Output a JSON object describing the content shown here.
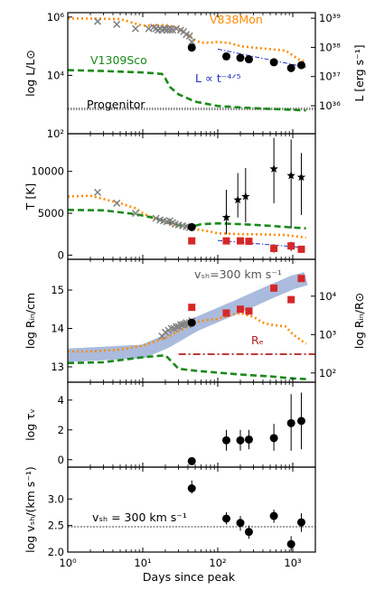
{
  "xaxis": {
    "label": "Days since peak",
    "log": true,
    "lim": [
      1,
      2000
    ],
    "ticks": [
      {
        "v": 1,
        "label": "10⁰"
      },
      {
        "v": 10,
        "label": "10¹"
      },
      {
        "v": 100,
        "label": "10²"
      },
      {
        "v": 1000,
        "label": "10³"
      }
    ]
  },
  "colors": {
    "v838": "#ff8c00",
    "v1309": "#1a8a1a",
    "grey": "#808080",
    "black": "#000000",
    "red": "#d62728",
    "band": "#aabbdd",
    "rc": "#b22222",
    "fit": "#1f2fbf"
  },
  "chart_data": [
    {
      "type": "scatter",
      "panel": "luminosity",
      "ylabel": "log L/L⊙",
      "y2label": "L [erg s⁻¹]",
      "ylim": [
        2,
        6.15
      ],
      "yticks": [
        {
          "v": 2,
          "label": "10²"
        },
        {
          "v": 4,
          "label": "10⁴"
        },
        {
          "v": 6,
          "label": "10⁶"
        }
      ],
      "y2ticks": [
        {
          "v": 2.96,
          "label": "10³⁶"
        },
        {
          "v": 3.96,
          "label": "10³⁷"
        },
        {
          "v": 4.96,
          "label": "10³⁸"
        },
        {
          "v": 5.96,
          "label": "10³⁹"
        }
      ],
      "annotations": {
        "v838": "V838Mon",
        "v1309": "V1309Sco",
        "progenitor": "Progenitor",
        "powerlaw": "L ∝ t⁻⁴ᐟ⁵"
      },
      "progenitor_level": 2.85,
      "v838_line": {
        "x": [
          1,
          2,
          5,
          10,
          16,
          20,
          25,
          30,
          35,
          40,
          50,
          60,
          80,
          100,
          150,
          200,
          300,
          500,
          800,
          1200,
          1500
        ],
        "y": [
          5.95,
          5.95,
          5.93,
          5.7,
          5.72,
          5.73,
          5.68,
          5.6,
          5.5,
          5.4,
          5.2,
          5.12,
          5.12,
          5.15,
          5.1,
          5.0,
          4.95,
          4.9,
          4.85,
          4.55,
          4.45
        ]
      },
      "v1309_line": {
        "x": [
          1,
          3,
          10,
          18,
          20,
          23,
          30,
          50,
          100,
          200,
          500,
          1000,
          1500
        ],
        "y": [
          4.18,
          4.15,
          4.1,
          4.05,
          3.9,
          3.6,
          3.35,
          3.1,
          2.95,
          2.9,
          2.85,
          2.82,
          2.8
        ]
      },
      "grey_x": {
        "x": [
          2.5,
          4.5,
          8,
          12,
          14,
          15,
          16,
          17,
          18,
          19,
          20,
          21,
          22,
          23,
          24,
          25,
          28,
          32,
          35,
          38,
          42,
          45
        ],
        "y": [
          5.85,
          5.75,
          5.6,
          5.6,
          5.65,
          5.6,
          5.55,
          5.6,
          5.55,
          5.6,
          5.6,
          5.55,
          5.6,
          5.55,
          5.6,
          5.55,
          5.6,
          5.55,
          5.5,
          5.4,
          5.35,
          5.15
        ]
      },
      "black_points": {
        "x": [
          45,
          130,
          200,
          260,
          560,
          950,
          1300
        ],
        "y": [
          4.95,
          4.65,
          4.6,
          4.55,
          4.45,
          4.25,
          4.35
        ]
      },
      "fit_line": {
        "x": [
          100,
          1500
        ],
        "y": [
          4.9,
          4.28
        ]
      }
    },
    {
      "type": "scatter",
      "panel": "temperature",
      "ylabel": "T [K]",
      "ylim": [
        -500,
        14500
      ],
      "yticks": [
        {
          "v": 0,
          "label": "0"
        },
        {
          "v": 5000,
          "label": "5000"
        },
        {
          "v": 10000,
          "label": "10000"
        }
      ],
      "v838_line": {
        "x": [
          1,
          2,
          3,
          5,
          8,
          10,
          15,
          20,
          30,
          40,
          60,
          80,
          100,
          150,
          200,
          300,
          500,
          800,
          1200,
          1500
        ],
        "y": [
          7000,
          7100,
          6700,
          6200,
          5600,
          5000,
          4300,
          3900,
          3500,
          3200,
          3000,
          2800,
          2600,
          2550,
          2500,
          2500,
          2450,
          2400,
          2200,
          2100
        ]
      },
      "v1309_line": {
        "x": [
          1,
          3,
          8,
          15,
          20,
          30,
          45,
          60,
          100,
          200,
          500,
          1000,
          1500
        ],
        "y": [
          5400,
          5350,
          4900,
          4400,
          4000,
          3600,
          3400,
          3700,
          3800,
          3700,
          3500,
          3300,
          3200
        ]
      },
      "grey_x": {
        "x": [
          2.5,
          4.5,
          8,
          15,
          17,
          19,
          21,
          23,
          25,
          27,
          30,
          34,
          38,
          42
        ],
        "y": [
          7500,
          6200,
          5000,
          4400,
          4200,
          4100,
          4000,
          4100,
          3900,
          3700,
          3600,
          3500,
          3400,
          3300
        ]
      },
      "black_points": {
        "x": [
          45
        ],
        "y": [
          3350
        ]
      },
      "black_stars": {
        "x": [
          130,
          185,
          235,
          560,
          950,
          1300
        ],
        "y": [
          4500,
          6600,
          7000,
          10300,
          9500,
          9300
        ]
      },
      "star_err": [
        [
          130,
          2500,
          7800
        ],
        [
          185,
          4500,
          9800
        ],
        [
          235,
          3900,
          10400
        ],
        [
          560,
          6200,
          14000
        ],
        [
          950,
          3200,
          13800
        ],
        [
          1300,
          4800,
          12200
        ]
      ],
      "red_squares": {
        "x": [
          45,
          130,
          200,
          260,
          560,
          950,
          1300
        ],
        "y": [
          1700,
          1700,
          1700,
          1650,
          800,
          1100,
          700
        ]
      },
      "red_err": [
        [
          560,
          300,
          1300
        ],
        [
          950,
          500,
          1600
        ]
      ],
      "fit_line": {
        "x": [
          100,
          1400
        ],
        "y": [
          1750,
          900
        ]
      }
    },
    {
      "type": "scatter",
      "panel": "radius",
      "ylabel": "log Rᵢₙ/cm",
      "y2label": "log Rᵢₙ/R⊙",
      "ylim": [
        12.6,
        15.8
      ],
      "yticks": [
        {
          "v": 13,
          "label": "13"
        },
        {
          "v": 14,
          "label": "14"
        },
        {
          "v": 15,
          "label": "15"
        }
      ],
      "y2ticks": [
        {
          "v": 12.84,
          "label": "10²"
        },
        {
          "v": 13.84,
          "label": "10³"
        },
        {
          "v": 14.84,
          "label": "10⁴"
        }
      ],
      "annotations": {
        "band": "vₛₕ=300 km s⁻¹",
        "rc": "Rₑ"
      },
      "rc_level": 13.33,
      "band_line": {
        "x": [
          1,
          10,
          20,
          50,
          100,
          200,
          500,
          1000,
          1500
        ],
        "y": [
          13.3,
          13.4,
          13.65,
          14.1,
          14.35,
          14.6,
          14.95,
          15.2,
          15.3
        ]
      },
      "v838_line": {
        "x": [
          1,
          2,
          5,
          10,
          20,
          40,
          60,
          100,
          150,
          200,
          300,
          400,
          500,
          800,
          1000,
          1500
        ],
        "y": [
          13.4,
          13.4,
          13.45,
          13.55,
          13.75,
          14.05,
          14.2,
          14.25,
          14.35,
          14.4,
          14.3,
          14.15,
          14.1,
          14.05,
          13.85,
          13.6
        ]
      },
      "v1309_line": {
        "x": [
          1,
          3,
          10,
          20,
          22,
          30,
          50,
          100,
          200,
          500,
          1000,
          1500
        ],
        "y": [
          13.1,
          13.12,
          13.25,
          13.3,
          13.22,
          12.95,
          12.9,
          12.85,
          12.8,
          12.75,
          12.7,
          12.68
        ]
      },
      "grey_x": {
        "x": [
          18,
          20,
          22,
          24,
          26,
          28,
          30,
          32,
          34,
          36,
          38,
          40,
          42,
          45
        ],
        "y": [
          13.8,
          13.9,
          13.95,
          14.0,
          14.0,
          14.05,
          14.05,
          14.1,
          14.1,
          14.12,
          14.15,
          14.1,
          14.15,
          14.2
        ]
      },
      "black_points": {
        "x": [
          45
        ],
        "y": [
          14.15
        ]
      },
      "red_squares": {
        "x": [
          45,
          130,
          200,
          260,
          560,
          950,
          1300
        ],
        "y": [
          14.55,
          14.4,
          14.5,
          14.45,
          15.05,
          14.75,
          15.3
        ]
      }
    },
    {
      "type": "scatter",
      "panel": "optical_depth",
      "ylabel": "log τᵥ",
      "ylim": [
        -0.5,
        5.2
      ],
      "yticks": [
        {
          "v": 0,
          "label": "0"
        },
        {
          "v": 2,
          "label": "2"
        },
        {
          "v": 4,
          "label": "4"
        }
      ],
      "black_points": {
        "x": [
          45,
          130,
          200,
          260,
          560,
          950,
          1300
        ],
        "y": [
          -0.1,
          1.3,
          1.3,
          1.35,
          1.45,
          2.45,
          2.6
        ]
      },
      "err": [
        [
          130,
          0.6,
          2.0
        ],
        [
          200,
          0.6,
          2.0
        ],
        [
          260,
          0.7,
          2.0
        ],
        [
          560,
          0.6,
          2.4
        ],
        [
          950,
          0.6,
          4.4
        ],
        [
          1300,
          0.7,
          4.5
        ]
      ]
    },
    {
      "type": "scatter",
      "panel": "velocity",
      "ylabel": "log vₛₕ/(km s⁻¹)",
      "ylim": [
        2.0,
        3.6
      ],
      "yticks": [
        {
          "v": 2.0,
          "label": "2.0"
        },
        {
          "v": 2.5,
          "label": "2.5"
        },
        {
          "v": 3.0,
          "label": "3.0"
        }
      ],
      "annotations": {
        "ref": "vₛₕ = 300 km s⁻¹"
      },
      "ref_level": 2.477,
      "black_points": {
        "x": [
          45,
          130,
          200,
          260,
          560,
          950,
          1300
        ],
        "y": [
          3.2,
          2.63,
          2.55,
          2.38,
          2.68,
          2.15,
          2.56
        ]
      },
      "err": [
        [
          45,
          3.1,
          3.35
        ],
        [
          130,
          2.52,
          2.75
        ],
        [
          200,
          2.4,
          2.68
        ],
        [
          260,
          2.25,
          2.5
        ],
        [
          560,
          2.55,
          2.8
        ],
        [
          950,
          2.02,
          2.3
        ],
        [
          1300,
          2.38,
          2.73
        ]
      ]
    }
  ]
}
